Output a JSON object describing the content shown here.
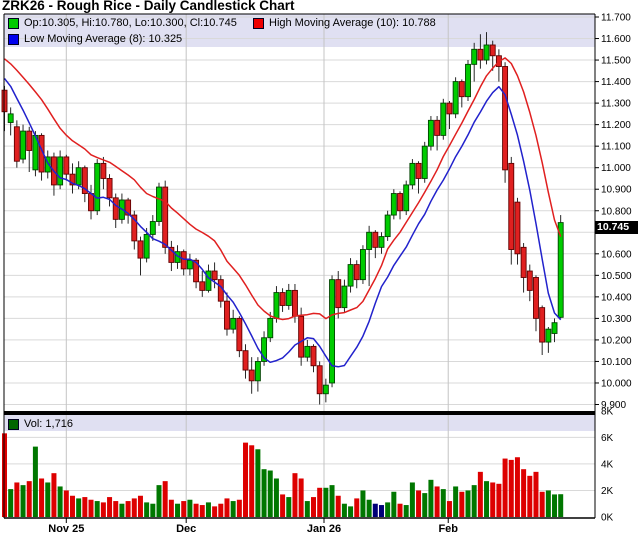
{
  "title": "ZRK26 - Rough Rice - Daily Candlestick Chart",
  "legend": {
    "ohlc": {
      "swatch_color": "#00CC00",
      "label": "Op:10.305, Hi:10.780, Lo:10.300, Cl:10.745"
    },
    "high_ma": {
      "swatch_color": "#EE0000",
      "label": "High Moving Average (10): 10.788"
    },
    "low_ma": {
      "swatch_color": "#0000EE",
      "label": "Low Moving Average (8): 10.325"
    }
  },
  "volume_legend": {
    "swatch_color": "#006600",
    "label": "Vol: 1,716"
  },
  "current_price_label": "10.745",
  "chart_data": {
    "type": "candlestick+volume",
    "current_price": 10.745,
    "price_axis": {
      "min": 9.9,
      "max": 11.7,
      "step": 0.1,
      "tick_labels": [
        "11.700",
        "11.600",
        "11.500",
        "11.400",
        "11.300",
        "11.200",
        "11.100",
        "11.000",
        "10.900",
        "10.800",
        "10.700",
        "10.600",
        "10.500",
        "10.400",
        "10.300",
        "10.200",
        "10.100",
        "10.000",
        "9.900"
      ]
    },
    "volume_axis": {
      "ticks": [
        {
          "label": "8K",
          "v": 8
        },
        {
          "label": "6K",
          "v": 6
        },
        {
          "label": "4K",
          "v": 4
        },
        {
          "label": "2K",
          "v": 2
        },
        {
          "label": "0K",
          "v": 0
        }
      ],
      "max_k": 8
    },
    "x_axis": {
      "month_ticks": [
        {
          "label": "Nov 25",
          "i": 10.0
        },
        {
          "label": "Dec",
          "i": 29.4
        },
        {
          "label": "Jan 26",
          "i": 51.7
        },
        {
          "label": "Feb",
          "i": 71.8
        }
      ]
    },
    "ma_high": {
      "name": "High Moving Average",
      "period": 10,
      "value": 10.788,
      "start": 11.52
    },
    "ma_low": {
      "name": "Low Moving Average",
      "period": 8,
      "value": 10.325,
      "start": 11.45
    },
    "candles": [
      [
        11.36,
        11.38,
        11.17,
        11.26,
        6.3
      ],
      [
        11.21,
        11.28,
        11.15,
        11.25,
        2.1
      ],
      [
        11.19,
        11.22,
        11.0,
        11.03,
        2.6
      ],
      [
        11.04,
        11.2,
        11.02,
        11.17,
        2.4
      ],
      [
        11.17,
        11.19,
        10.98,
        11.08,
        2.7
      ],
      [
        10.99,
        11.17,
        10.96,
        11.15,
        5.3
      ],
      [
        11.15,
        11.16,
        10.94,
        10.98,
        2.9
      ],
      [
        10.98,
        11.08,
        10.95,
        11.05,
        2.6
      ],
      [
        11.05,
        11.07,
        10.87,
        10.92,
        3.3
      ],
      [
        10.92,
        11.08,
        10.9,
        11.05,
        2.3
      ],
      [
        11.05,
        11.06,
        10.94,
        10.97,
        2.0
      ],
      [
        10.97,
        11.02,
        10.88,
        10.92,
        1.6
      ],
      [
        10.92,
        11.03,
        10.9,
        11.0,
        1.4
      ],
      [
        11.0,
        11.01,
        10.84,
        10.88,
        1.5
      ],
      [
        10.88,
        10.92,
        10.76,
        10.8,
        1.3
      ],
      [
        10.8,
        11.04,
        10.78,
        11.02,
        1.2
      ],
      [
        11.02,
        11.05,
        10.9,
        10.95,
        1.1
      ],
      [
        10.95,
        10.97,
        10.82,
        10.86,
        1.5
      ],
      [
        10.86,
        10.88,
        10.72,
        10.76,
        1.2
      ],
      [
        10.76,
        10.88,
        10.74,
        10.85,
        1.0
      ],
      [
        10.85,
        10.86,
        10.74,
        10.78,
        1.2
      ],
      [
        10.78,
        10.8,
        10.62,
        10.66,
        1.4
      ],
      [
        10.66,
        10.68,
        10.5,
        10.58,
        1.6
      ],
      [
        10.58,
        10.72,
        10.56,
        10.69,
        1.1
      ],
      [
        10.69,
        10.78,
        10.66,
        10.75,
        1.0
      ],
      [
        10.75,
        10.93,
        10.73,
        10.91,
        2.4
      ],
      [
        10.91,
        10.94,
        10.6,
        10.63,
        2.7
      ],
      [
        10.63,
        10.66,
        10.52,
        10.56,
        1.3
      ],
      [
        10.56,
        10.64,
        10.53,
        10.61,
        1.0
      ],
      [
        10.61,
        10.62,
        10.5,
        10.53,
        1.2
      ],
      [
        10.53,
        10.6,
        10.5,
        10.57,
        1.3
      ],
      [
        10.57,
        10.58,
        10.44,
        10.47,
        1.0
      ],
      [
        10.47,
        10.52,
        10.4,
        10.43,
        0.9
      ],
      [
        10.43,
        10.55,
        10.42,
        10.52,
        1.1
      ],
      [
        10.52,
        10.56,
        10.44,
        10.48,
        0.8
      ],
      [
        10.48,
        10.5,
        10.35,
        10.38,
        1.0
      ],
      [
        10.38,
        10.42,
        10.22,
        10.25,
        1.4
      ],
      [
        10.25,
        10.34,
        10.23,
        10.3,
        1.2
      ],
      [
        10.3,
        10.31,
        10.12,
        10.15,
        1.3
      ],
      [
        10.15,
        10.18,
        10.02,
        10.06,
        5.6
      ],
      [
        10.06,
        10.12,
        9.95,
        10.01,
        5.4
      ],
      [
        10.01,
        10.12,
        9.96,
        10.1,
        5.1
      ],
      [
        10.1,
        10.24,
        10.08,
        10.21,
        3.6
      ],
      [
        10.21,
        10.33,
        10.19,
        10.3,
        3.5
      ],
      [
        10.3,
        10.45,
        10.28,
        10.42,
        2.9
      ],
      [
        10.42,
        10.44,
        10.33,
        10.36,
        1.7
      ],
      [
        10.36,
        10.46,
        10.34,
        10.43,
        1.5
      ],
      [
        10.43,
        10.46,
        10.28,
        10.31,
        3.3
      ],
      [
        10.31,
        10.35,
        10.08,
        10.12,
        2.9
      ],
      [
        10.12,
        10.2,
        10.1,
        10.17,
        1.2
      ],
      [
        10.17,
        10.18,
        10.05,
        10.08,
        1.5
      ],
      [
        10.08,
        10.1,
        9.9,
        9.95,
        2.2
      ],
      [
        9.95,
        10.02,
        9.91,
        9.99,
        2.2
      ],
      [
        10.0,
        10.5,
        9.98,
        10.48,
        2.4
      ],
      [
        10.48,
        10.52,
        10.3,
        10.35,
        1.6
      ],
      [
        10.35,
        10.48,
        10.33,
        10.45,
        1.0
      ],
      [
        10.45,
        10.58,
        10.42,
        10.55,
        0.8
      ],
      [
        10.55,
        10.57,
        10.44,
        10.48,
        1.4
      ],
      [
        10.48,
        10.64,
        10.46,
        10.62,
        2.0
      ],
      [
        10.62,
        10.73,
        10.45,
        10.7,
        1.3
      ],
      [
        10.7,
        10.71,
        10.58,
        10.63,
        1.0
      ],
      [
        10.63,
        10.7,
        10.6,
        10.68,
        0.9
      ],
      [
        10.68,
        10.8,
        10.66,
        10.78,
        1.1
      ],
      [
        10.78,
        10.9,
        10.76,
        10.88,
        1.9
      ],
      [
        10.88,
        10.89,
        10.76,
        10.8,
        1.0
      ],
      [
        10.8,
        10.94,
        10.78,
        10.92,
        0.9
      ],
      [
        10.92,
        11.04,
        10.9,
        11.02,
        2.6
      ],
      [
        11.02,
        11.03,
        10.88,
        10.95,
        2.0
      ],
      [
        10.95,
        11.12,
        10.93,
        11.1,
        1.8
      ],
      [
        11.1,
        11.24,
        11.08,
        11.22,
        2.8
      ],
      [
        11.22,
        11.24,
        11.08,
        11.15,
        2.3
      ],
      [
        11.15,
        11.32,
        11.13,
        11.3,
        2.1
      ],
      [
        11.3,
        11.31,
        11.18,
        11.25,
        1.2
      ],
      [
        11.25,
        11.42,
        11.23,
        11.4,
        2.3
      ],
      [
        11.4,
        11.41,
        11.28,
        11.33,
        1.9
      ],
      [
        11.33,
        11.5,
        11.31,
        11.48,
        2.0
      ],
      [
        11.48,
        11.58,
        11.4,
        11.55,
        2.4
      ],
      [
        11.55,
        11.62,
        11.46,
        11.5,
        3.4
      ],
      [
        11.5,
        11.63,
        11.48,
        11.57,
        2.7
      ],
      [
        11.57,
        11.59,
        11.45,
        11.52,
        2.6
      ],
      [
        11.52,
        11.55,
        11.4,
        11.47,
        2.5
      ],
      [
        11.47,
        11.49,
        10.93,
        10.99,
        4.4
      ],
      [
        11.02,
        11.05,
        10.55,
        10.62,
        4.3
      ],
      [
        10.84,
        10.86,
        10.55,
        10.6,
        4.5
      ],
      [
        10.63,
        10.65,
        10.42,
        10.49,
        3.6
      ],
      [
        10.52,
        10.55,
        10.38,
        10.43,
        3.1
      ],
      [
        10.49,
        10.5,
        10.24,
        10.3,
        3.4
      ],
      [
        10.35,
        10.36,
        10.13,
        10.19,
        1.9
      ],
      [
        10.19,
        10.26,
        10.14,
        10.25,
        2.0
      ],
      [
        10.23,
        10.3,
        10.19,
        10.28,
        1.7
      ],
      [
        10.305,
        10.78,
        10.3,
        10.745,
        1.716
      ]
    ],
    "neutral_volume_indexes": [
      60,
      61
    ],
    "colors": {
      "up": "#00CC00",
      "up_border": "#004400",
      "down": "#E02020",
      "down_border": "#600000",
      "wick": "#111111",
      "vol_up": "#007700",
      "vol_down": "#DD0000",
      "vol_neutral": "#000077",
      "ma_high_line": "#E02020",
      "ma_low_line": "#2222CC",
      "grid": "#D9D9D9",
      "month_grid": "#C4C4C4",
      "legend_bg": "#E0E0F2",
      "flag_bg": "#000000",
      "flag_text": "#FFFFFF"
    }
  }
}
